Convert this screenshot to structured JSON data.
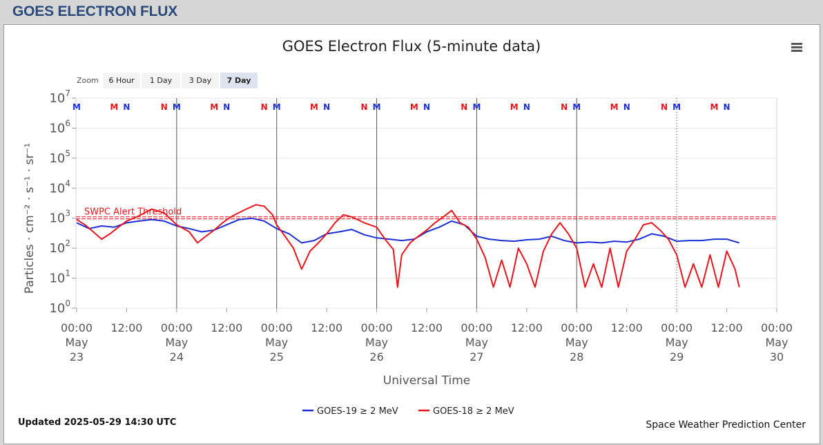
{
  "header": {
    "title": "GOES ELECTRON FLUX"
  },
  "zoom": {
    "label": "Zoom",
    "buttons": [
      "6 Hour",
      "1 Day",
      "3 Day",
      "7 Day"
    ],
    "selected": "7 Day"
  },
  "footer": {
    "updated": "Updated 2025-05-29 14:30 UTC",
    "credit": "Space Weather Prediction Center"
  },
  "icons": {
    "menu": "hamburger-menu-icon"
  },
  "chart_data": {
    "type": "line",
    "title": "GOES Electron Flux (5-minute data)",
    "xlabel": "Universal Time",
    "ylabel": "Particles · cm⁻² · s⁻¹ · sr⁻¹",
    "y_scale": "log",
    "ylim": [
      1,
      10000000
    ],
    "y_ticks": [
      {
        "base": "10",
        "exp": "0"
      },
      {
        "base": "10",
        "exp": "1"
      },
      {
        "base": "10",
        "exp": "2"
      },
      {
        "base": "10",
        "exp": "3"
      },
      {
        "base": "10",
        "exp": "4"
      },
      {
        "base": "10",
        "exp": "5"
      },
      {
        "base": "10",
        "exp": "6"
      },
      {
        "base": "10",
        "exp": "7"
      }
    ],
    "xlim_hours": [
      0,
      168
    ],
    "x_ticks": [
      {
        "h": 0,
        "lines": [
          "00:00",
          "May",
          "23"
        ]
      },
      {
        "h": 12,
        "lines": [
          "12:00"
        ]
      },
      {
        "h": 24,
        "lines": [
          "00:00",
          "May",
          "24"
        ]
      },
      {
        "h": 36,
        "lines": [
          "12:00"
        ]
      },
      {
        "h": 48,
        "lines": [
          "00:00",
          "May",
          "25"
        ]
      },
      {
        "h": 60,
        "lines": [
          "12:00"
        ]
      },
      {
        "h": 72,
        "lines": [
          "00:00",
          "May",
          "26"
        ]
      },
      {
        "h": 84,
        "lines": [
          "12:00"
        ]
      },
      {
        "h": 96,
        "lines": [
          "00:00",
          "May",
          "27"
        ]
      },
      {
        "h": 108,
        "lines": [
          "12:00"
        ]
      },
      {
        "h": 120,
        "lines": [
          "00:00",
          "May",
          "28"
        ]
      },
      {
        "h": 132,
        "lines": [
          "12:00"
        ]
      },
      {
        "h": 144,
        "lines": [
          "00:00",
          "May",
          "29"
        ]
      },
      {
        "h": 156,
        "lines": [
          "12:00"
        ]
      },
      {
        "h": 168,
        "lines": [
          "00:00",
          "May",
          "30"
        ]
      }
    ],
    "threshold": {
      "label": "SWPC Alert Threshold",
      "value": 1000
    },
    "day_lines_hours": [
      24,
      48,
      72,
      96,
      120
    ],
    "now_line_hours": 144,
    "mn_markers": [
      {
        "h": 0,
        "text": "M",
        "color": "#1a2fd6"
      },
      {
        "h": 9,
        "text": "M",
        "color": "#e8141b"
      },
      {
        "h": 12,
        "text": "N",
        "color": "#1a2fd6"
      },
      {
        "h": 21,
        "text": "N",
        "color": "#e8141b"
      },
      {
        "h": 24,
        "text": "M",
        "color": "#1a2fd6"
      },
      {
        "h": 33,
        "text": "M",
        "color": "#e8141b"
      },
      {
        "h": 36,
        "text": "N",
        "color": "#1a2fd6"
      },
      {
        "h": 45,
        "text": "N",
        "color": "#e8141b"
      },
      {
        "h": 48,
        "text": "M",
        "color": "#1a2fd6"
      },
      {
        "h": 57,
        "text": "M",
        "color": "#e8141b"
      },
      {
        "h": 60,
        "text": "N",
        "color": "#1a2fd6"
      },
      {
        "h": 69,
        "text": "N",
        "color": "#e8141b"
      },
      {
        "h": 72,
        "text": "M",
        "color": "#1a2fd6"
      },
      {
        "h": 81,
        "text": "M",
        "color": "#e8141b"
      },
      {
        "h": 84,
        "text": "N",
        "color": "#1a2fd6"
      },
      {
        "h": 93,
        "text": "N",
        "color": "#e8141b"
      },
      {
        "h": 96,
        "text": "M",
        "color": "#1a2fd6"
      },
      {
        "h": 105,
        "text": "M",
        "color": "#e8141b"
      },
      {
        "h": 108,
        "text": "N",
        "color": "#1a2fd6"
      },
      {
        "h": 117,
        "text": "N",
        "color": "#e8141b"
      },
      {
        "h": 120,
        "text": "M",
        "color": "#1a2fd6"
      },
      {
        "h": 129,
        "text": "M",
        "color": "#e8141b"
      },
      {
        "h": 132,
        "text": "N",
        "color": "#1a2fd6"
      },
      {
        "h": 141,
        "text": "N",
        "color": "#e8141b"
      },
      {
        "h": 144,
        "text": "M",
        "color": "#1a2fd6"
      },
      {
        "h": 153,
        "text": "M",
        "color": "#e8141b"
      },
      {
        "h": 156,
        "text": "N",
        "color": "#1a2fd6"
      }
    ],
    "series": [
      {
        "name": "GOES-19 ≥ 2 MeV",
        "color": "#1a2fd6",
        "points": [
          [
            0,
            700
          ],
          [
            3,
            450
          ],
          [
            6,
            550
          ],
          [
            9,
            500
          ],
          [
            12,
            700
          ],
          [
            15,
            800
          ],
          [
            18,
            900
          ],
          [
            21,
            800
          ],
          [
            24,
            550
          ],
          [
            27,
            450
          ],
          [
            30,
            350
          ],
          [
            33,
            400
          ],
          [
            36,
            600
          ],
          [
            39,
            900
          ],
          [
            42,
            1000
          ],
          [
            45,
            800
          ],
          [
            48,
            450
          ],
          [
            51,
            300
          ],
          [
            54,
            150
          ],
          [
            57,
            180
          ],
          [
            60,
            300
          ],
          [
            63,
            350
          ],
          [
            66,
            420
          ],
          [
            69,
            280
          ],
          [
            72,
            220
          ],
          [
            75,
            200
          ],
          [
            78,
            180
          ],
          [
            81,
            200
          ],
          [
            84,
            350
          ],
          [
            87,
            500
          ],
          [
            90,
            800
          ],
          [
            93,
            600
          ],
          [
            96,
            250
          ],
          [
            99,
            200
          ],
          [
            102,
            180
          ],
          [
            105,
            170
          ],
          [
            108,
            190
          ],
          [
            111,
            200
          ],
          [
            114,
            250
          ],
          [
            117,
            180
          ],
          [
            120,
            150
          ],
          [
            123,
            160
          ],
          [
            126,
            150
          ],
          [
            129,
            170
          ],
          [
            132,
            160
          ],
          [
            135,
            200
          ],
          [
            138,
            300
          ],
          [
            141,
            250
          ],
          [
            144,
            170
          ],
          [
            147,
            180
          ],
          [
            150,
            180
          ],
          [
            153,
            200
          ],
          [
            156,
            200
          ],
          [
            159,
            150
          ]
        ]
      },
      {
        "name": "GOES-18 ≥ 2 MeV",
        "color": "#e8141b",
        "points": [
          [
            0,
            900
          ],
          [
            2,
            600
          ],
          [
            4,
            350
          ],
          [
            6,
            200
          ],
          [
            8,
            300
          ],
          [
            10,
            500
          ],
          [
            12,
            800
          ],
          [
            15,
            1200
          ],
          [
            18,
            2000
          ],
          [
            21,
            1500
          ],
          [
            24,
            600
          ],
          [
            27,
            350
          ],
          [
            29,
            150
          ],
          [
            31,
            250
          ],
          [
            33,
            400
          ],
          [
            35,
            700
          ],
          [
            37,
            1100
          ],
          [
            40,
            1800
          ],
          [
            43,
            2800
          ],
          [
            45,
            2500
          ],
          [
            47,
            1300
          ],
          [
            48,
            600
          ],
          [
            50,
            250
          ],
          [
            52,
            100
          ],
          [
            54,
            20
          ],
          [
            56,
            80
          ],
          [
            58,
            150
          ],
          [
            60,
            300
          ],
          [
            62,
            700
          ],
          [
            64,
            1300
          ],
          [
            66,
            1100
          ],
          [
            69,
            700
          ],
          [
            72,
            500
          ],
          [
            74,
            200
          ],
          [
            76,
            90
          ],
          [
            77,
            5
          ],
          [
            78,
            60
          ],
          [
            80,
            150
          ],
          [
            82,
            250
          ],
          [
            84,
            400
          ],
          [
            86,
            700
          ],
          [
            88,
            1100
          ],
          [
            90,
            1800
          ],
          [
            92,
            700
          ],
          [
            94,
            500
          ],
          [
            96,
            200
          ],
          [
            98,
            50
          ],
          [
            100,
            5
          ],
          [
            102,
            40
          ],
          [
            104,
            5
          ],
          [
            106,
            100
          ],
          [
            108,
            30
          ],
          [
            110,
            5
          ],
          [
            112,
            80
          ],
          [
            114,
            300
          ],
          [
            116,
            700
          ],
          [
            118,
            300
          ],
          [
            120,
            100
          ],
          [
            122,
            5
          ],
          [
            124,
            30
          ],
          [
            126,
            5
          ],
          [
            128,
            100
          ],
          [
            130,
            5
          ],
          [
            132,
            80
          ],
          [
            134,
            200
          ],
          [
            136,
            600
          ],
          [
            138,
            700
          ],
          [
            140,
            400
          ],
          [
            142,
            200
          ],
          [
            144,
            60
          ],
          [
            146,
            5
          ],
          [
            148,
            30
          ],
          [
            150,
            5
          ],
          [
            152,
            60
          ],
          [
            154,
            5
          ],
          [
            156,
            80
          ],
          [
            158,
            20
          ],
          [
            159,
            5
          ]
        ]
      }
    ]
  }
}
